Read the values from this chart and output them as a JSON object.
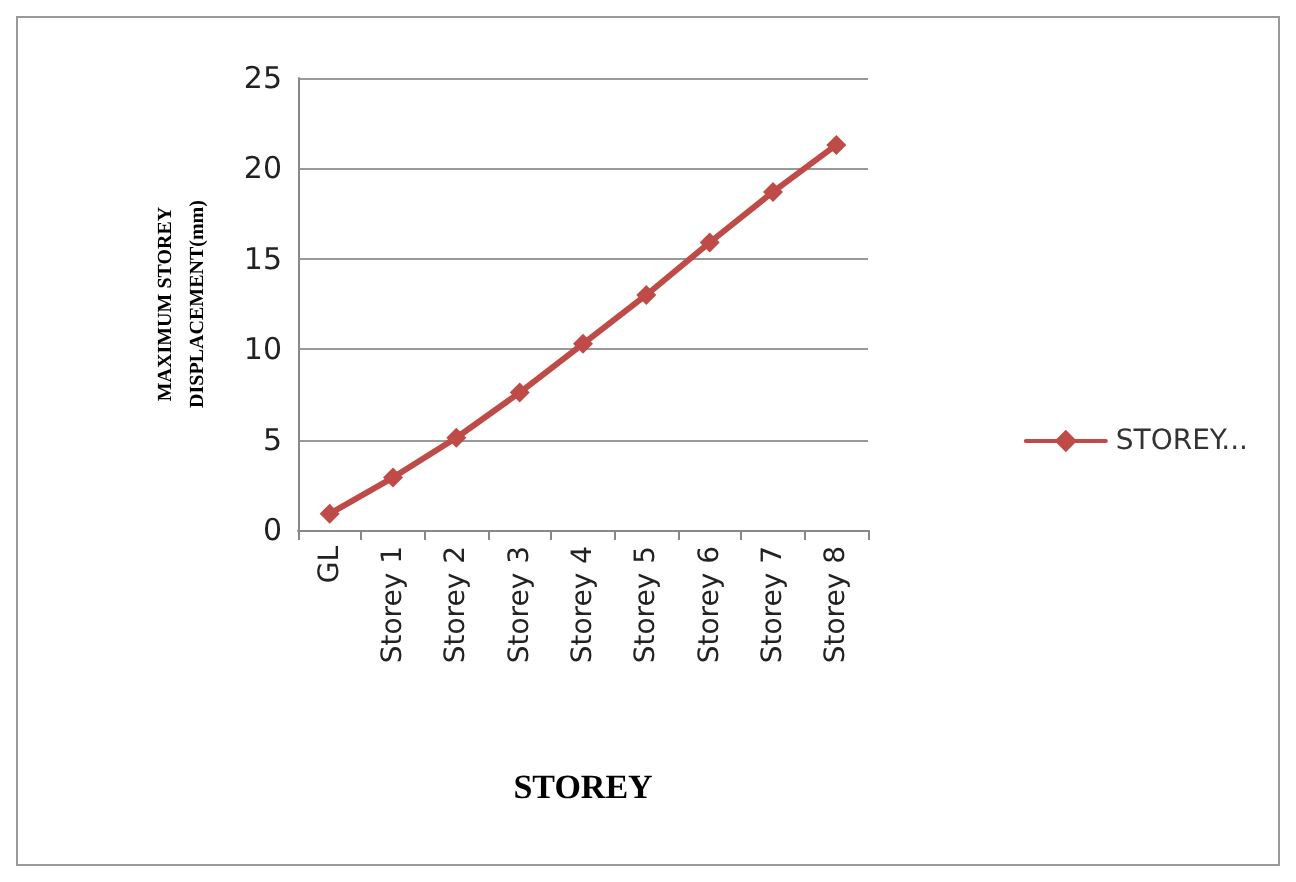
{
  "chart_data": {
    "type": "line",
    "xlabel": "STOREY",
    "ylabel": "MAXIMUM STOREY\nDISPLACEMENT(mm)",
    "categories": [
      "GL",
      "Storey 1",
      "Storey 2",
      "Storey 3",
      "Storey 4",
      "Storey 5",
      "Storey 6",
      "Storey 7",
      "Storey 8"
    ],
    "series": [
      {
        "name": "STOREY...",
        "color": "#be4b48",
        "values": [
          0.9,
          2.9,
          5.1,
          7.6,
          10.3,
          13.0,
          15.9,
          18.7,
          21.3
        ]
      }
    ],
    "ylim": [
      0,
      25
    ],
    "yticks": [
      0,
      5,
      10,
      15,
      20,
      25
    ],
    "grid": "y",
    "legend": "right",
    "marker": "diamond",
    "line_style": "solid"
  }
}
